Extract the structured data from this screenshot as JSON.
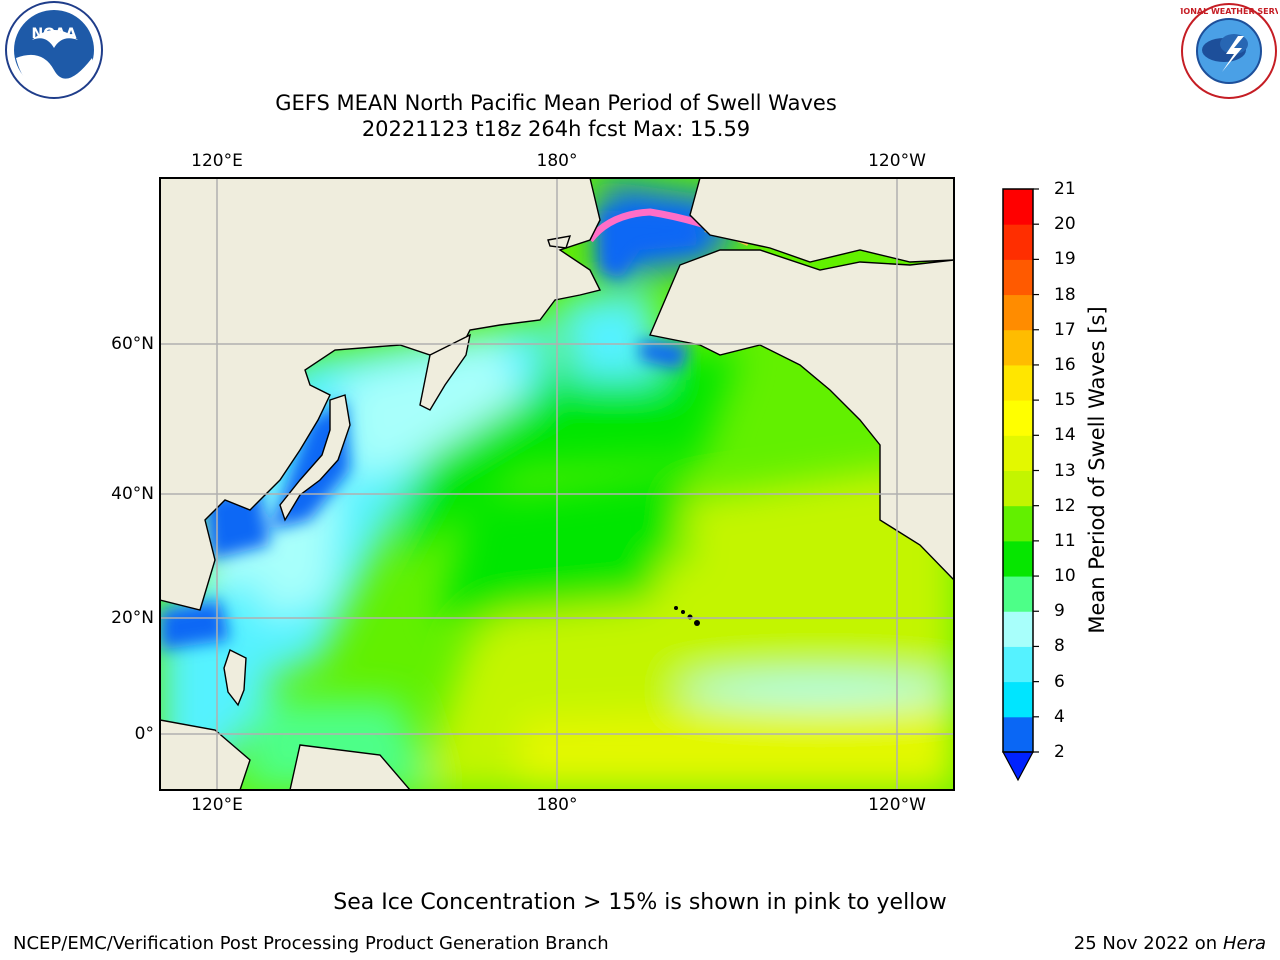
{
  "title": {
    "line1": "GEFS MEAN North Pacific Mean Period of Swell Waves",
    "line2": "20221123 t18z 264h fcst   Max: 15.59"
  },
  "map": {
    "lon_labels": [
      "120°E",
      "180°",
      "120°W"
    ],
    "lat_labels": [
      "60°N",
      "40°N",
      "20°N",
      "0°"
    ],
    "land_color": "#efeddd",
    "grid_color": "#b0b0b0"
  },
  "colorbar": {
    "title": "Mean Period of Swell Waves [s]",
    "ticks": [
      "2",
      "4",
      "6",
      "8",
      "9",
      "10",
      "11",
      "12",
      "13",
      "14",
      "15",
      "16",
      "17",
      "18",
      "19",
      "20",
      "21"
    ],
    "colors": [
      "#0a67f5",
      "#00e5ff",
      "#55f2ff",
      "#a8fffb",
      "#4dff88",
      "#06e600",
      "#62f000",
      "#c3f500",
      "#e3f800",
      "#ffff00",
      "#ffe600",
      "#ffbc00",
      "#ff8c00",
      "#ff5a00",
      "#ff2e00",
      "#ff0000"
    ],
    "under_color": "#0022ff"
  },
  "logos": {
    "left_text": "NOAA",
    "right_text": "NATIONAL WEATHER SERVICE"
  },
  "footer": {
    "note": "Sea Ice Concentration > 15% is shown in pink to yellow",
    "credit": "NCEP/EMC/Verification Post Processing Product Generation Branch",
    "date": "25 Nov 2022 on",
    "host": "Hera"
  }
}
